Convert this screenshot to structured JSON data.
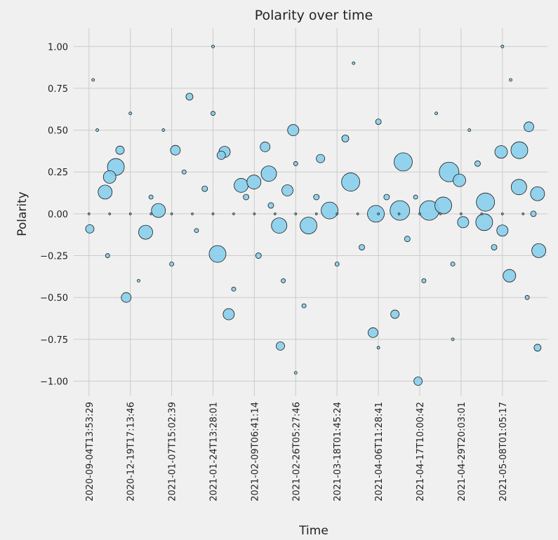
{
  "chart_data": {
    "type": "scatter",
    "title": "Polarity over time",
    "xlabel": "Time",
    "ylabel": "Polarity",
    "color": "#87ceeb",
    "edgecolor": "#1a1a1a",
    "grid": true,
    "xlim": [
      -37,
      1109
    ],
    "ylim": [
      -1.09,
      1.11
    ],
    "xticks": [
      {
        "value": 0,
        "label": "2020-09-04T13:53:29"
      },
      {
        "value": 100,
        "label": "2020-12-19T17:13:46"
      },
      {
        "value": 200,
        "label": "2021-01-07T15:02:39"
      },
      {
        "value": 300,
        "label": "2021-01-24T13:28:01"
      },
      {
        "value": 400,
        "label": "2021-02-09T06:41:14"
      },
      {
        "value": 500,
        "label": "2021-02-26T05:27:46"
      },
      {
        "value": 600,
        "label": "2021-03-18T01:45:24"
      },
      {
        "value": 700,
        "label": "2021-04-06T11:28:41"
      },
      {
        "value": 800,
        "label": "2021-04-17T10:00:42"
      },
      {
        "value": 900,
        "label": "2021-04-29T20:03:01"
      },
      {
        "value": 1000,
        "label": "2021-05-08T01:05:17"
      }
    ],
    "yticks": [
      {
        "value": -1,
        "label": "−1.00"
      },
      {
        "value": -0.75,
        "label": "−0.75"
      },
      {
        "value": -0.5,
        "label": "−0.50"
      },
      {
        "value": -0.25,
        "label": "−0.25"
      },
      {
        "value": 0,
        "label": "0.00"
      },
      {
        "value": 0.25,
        "label": "0.25"
      },
      {
        "value": 0.5,
        "label": "0.50"
      },
      {
        "value": 0.75,
        "label": "0.75"
      },
      {
        "value": 1,
        "label": "1.00"
      }
    ],
    "x": [
      2,
      65,
      39,
      90,
      137,
      168,
      209,
      243,
      311,
      338,
      328,
      426,
      435,
      460,
      463,
      494,
      531,
      633,
      687,
      752,
      760,
      823,
      796,
      871,
      857,
      896,
      959,
      997,
      1041,
      1017,
      1064,
      1085,
      1088,
      1085,
      956,
      582,
      694,
      368,
      399,
      50,
      75,
      320,
      480,
      560,
      620,
      700,
      740,
      905,
      1040,
      1000,
      10,
      20,
      45,
      100,
      120,
      150,
      180,
      200,
      230,
      260,
      280,
      300,
      350,
      380,
      410,
      440,
      470,
      500,
      520,
      550,
      600,
      640,
      660,
      720,
      770,
      790,
      810,
      840,
      880,
      920,
      940,
      980,
      1020,
      1060,
      1075,
      1000,
      300,
      500,
      700,
      880,
      0,
      50,
      100,
      150,
      200,
      250,
      300,
      350,
      400,
      450,
      500,
      550,
      600,
      650,
      700,
      750,
      800,
      850,
      900,
      950,
      1000,
      1050
    ],
    "y": [
      -0.09,
      0.28,
      0.13,
      -0.5,
      -0.11,
      0.02,
      0.38,
      0.7,
      -0.24,
      -0.6,
      0.37,
      0.4,
      0.24,
      -0.07,
      -0.79,
      0.5,
      -0.07,
      0.19,
      -0.71,
      0.02,
      0.31,
      0.02,
      -1,
      0.25,
      0.05,
      0.2,
      0.07,
      0.37,
      0.38,
      -0.37,
      0.52,
      0.12,
      -0.22,
      -0.8,
      -0.05,
      0.02,
      0,
      0.17,
      0.19,
      0.22,
      0.38,
      0.35,
      0.14,
      0.33,
      0.45,
      0.55,
      -0.6,
      -0.05,
      0.16,
      -0.1,
      0.8,
      0.5,
      -0.25,
      0.6,
      -0.4,
      0.1,
      0.5,
      -0.3,
      0.25,
      -0.1,
      0.15,
      0.6,
      -0.45,
      0.1,
      -0.25,
      0.05,
      -0.4,
      0.3,
      -0.55,
      0.1,
      -0.3,
      0.9,
      -0.2,
      0.1,
      -0.15,
      0.1,
      -0.4,
      0.6,
      -0.3,
      0.5,
      0.3,
      -0.2,
      0.8,
      -0.5,
      0,
      1,
      1,
      -0.95,
      -0.8,
      -0.75,
      0,
      0,
      0,
      0,
      0,
      0,
      0,
      0,
      0,
      0,
      0,
      0,
      0,
      0,
      0,
      0,
      0,
      0,
      0,
      0,
      0,
      0
    ],
    "sizes": [
      36,
      144,
      100,
      49,
      100,
      100,
      49,
      25,
      144,
      64,
      64,
      49,
      121,
      121,
      36,
      64,
      144,
      169,
      49,
      196,
      169,
      196,
      36,
      196,
      144,
      81,
      169,
      81,
      144,
      81,
      49,
      100,
      100,
      25,
      144,
      144,
      144,
      100,
      100,
      81,
      36,
      36,
      64,
      36,
      25,
      16,
      36,
      64,
      121,
      64,
      4,
      4,
      9,
      4,
      4,
      9,
      4,
      9,
      9,
      9,
      16,
      9,
      9,
      16,
      16,
      16,
      9,
      9,
      9,
      16,
      9,
      4,
      16,
      16,
      16,
      9,
      9,
      4,
      9,
      4,
      16,
      16,
      4,
      9,
      16,
      4,
      4,
      4,
      4,
      4,
      2,
      2,
      2,
      2,
      2,
      2,
      2,
      2,
      2,
      2,
      2,
      2,
      2,
      2,
      2,
      2,
      2,
      2,
      2,
      2,
      2,
      2
    ]
  }
}
